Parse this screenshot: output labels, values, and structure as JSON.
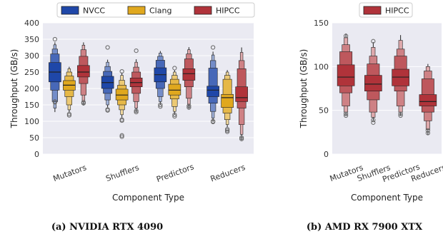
{
  "captions": [
    "(a) NVIDIA RTX 4090",
    "(b) AMD RX 7900 XTX"
  ],
  "colors": {
    "NVCC": "#1f47a8",
    "Clang": "#e0a81e",
    "HIPCC": "#b0333a",
    "plot_bg": "#eaeaf2"
  },
  "chart_data": [
    {
      "type": "boxen",
      "title": "",
      "xlabel": "Component Type",
      "ylabel": "Throughput (GB/s)",
      "ylim": [
        0,
        400
      ],
      "yticks": [
        0,
        50,
        100,
        150,
        200,
        250,
        300,
        350,
        400
      ],
      "grid": true,
      "legend": {
        "placement": "top",
        "entries": [
          "NVCC",
          "Clang",
          "HIPCC"
        ]
      },
      "categories": [
        "Mutators",
        "Shufflers",
        "Predictors",
        "Reducers"
      ],
      "series": [
        {
          "name": "NVCC",
          "boxes": [
            {
              "q": [
                140,
                160,
                195,
                220,
                250,
                279,
                305,
                320,
                333
              ],
              "outliers": [
                158,
                160,
                350
              ]
            },
            {
              "q": [
                150,
                165,
                185,
                200,
                218,
                237,
                252,
                267,
                280
              ],
              "outliers": [
                133,
                136,
                325
              ]
            },
            {
              "q": [
                160,
                175,
                200,
                220,
                242,
                263,
                286,
                298,
                308
              ],
              "outliers": [
                145,
                150
              ]
            },
            {
              "q": [
                110,
                130,
                155,
                175,
                195,
                207,
                262,
                285,
                302
              ],
              "outliers": [
                98,
                100,
                325
              ]
            }
          ]
        },
        {
          "name": "Clang",
          "boxes": [
            {
              "q": [
                135,
                150,
                175,
                195,
                210,
                224,
                238,
                250,
                260
              ],
              "outliers": [
                118,
                122
              ]
            },
            {
              "q": [
                120,
                135,
                150,
                165,
                180,
                198,
                210,
                225,
                240
              ],
              "outliers": [
                102,
                105,
                252,
                53,
                57
              ]
            },
            {
              "q": [
                130,
                145,
                168,
                180,
                195,
                213,
                228,
                240,
                250
              ],
              "outliers": [
                115,
                120,
                262
              ]
            },
            {
              "q": [
                90,
                105,
                125,
                142,
                172,
                182,
                228,
                240,
                250
              ],
              "outliers": [
                68,
                72,
                76
              ]
            }
          ]
        },
        {
          "name": "HIPCC",
          "boxes": [
            {
              "q": [
                160,
                180,
                215,
                235,
                250,
                270,
                298,
                318,
                332
              ],
              "outliers": [
                155,
                158
              ]
            },
            {
              "q": [
                140,
                160,
                185,
                205,
                218,
                232,
                250,
                265,
                280
              ],
              "outliers": [
                128,
                132,
                315
              ]
            },
            {
              "q": [
                150,
                170,
                205,
                225,
                245,
                260,
                290,
                305,
                318
              ],
              "outliers": [
                142,
                147
              ]
            },
            {
              "q": [
                60,
                90,
                140,
                160,
                172,
                205,
                260,
                285,
                310
              ],
              "outliers": [
                46,
                50
              ]
            }
          ]
        }
      ]
    },
    {
      "type": "boxen",
      "title": "",
      "xlabel": "Component Type",
      "ylabel": "Throughput (GB/s)",
      "ylim": [
        0,
        150
      ],
      "yticks": [
        0,
        50,
        100,
        150
      ],
      "grid": true,
      "legend": {
        "placement": "top",
        "entries": [
          "HIPCC"
        ]
      },
      "categories": [
        "Mutators",
        "Shufflers",
        "Predictors",
        "Reducers"
      ],
      "series": [
        {
          "name": "HIPCC",
          "boxes": [
            {
              "q": [
                48,
                55,
                70,
                78,
                88,
                102,
                117,
                125,
                133
              ],
              "outliers": [
                44,
                46,
                135
              ]
            },
            {
              "q": [
                42,
                48,
                62,
                72,
                80,
                90,
                103,
                112,
                122
              ],
              "outliers": [
                36,
                39,
                129
              ]
            },
            {
              "q": [
                48,
                55,
                72,
                78,
                88,
                97,
                112,
                120,
                130
              ],
              "outliers": [
                44,
                46
              ]
            },
            {
              "q": [
                28,
                38,
                48,
                55,
                60,
                68,
                86,
                95,
                100
              ],
              "outliers": [
                24,
                27
              ]
            }
          ]
        }
      ]
    }
  ]
}
